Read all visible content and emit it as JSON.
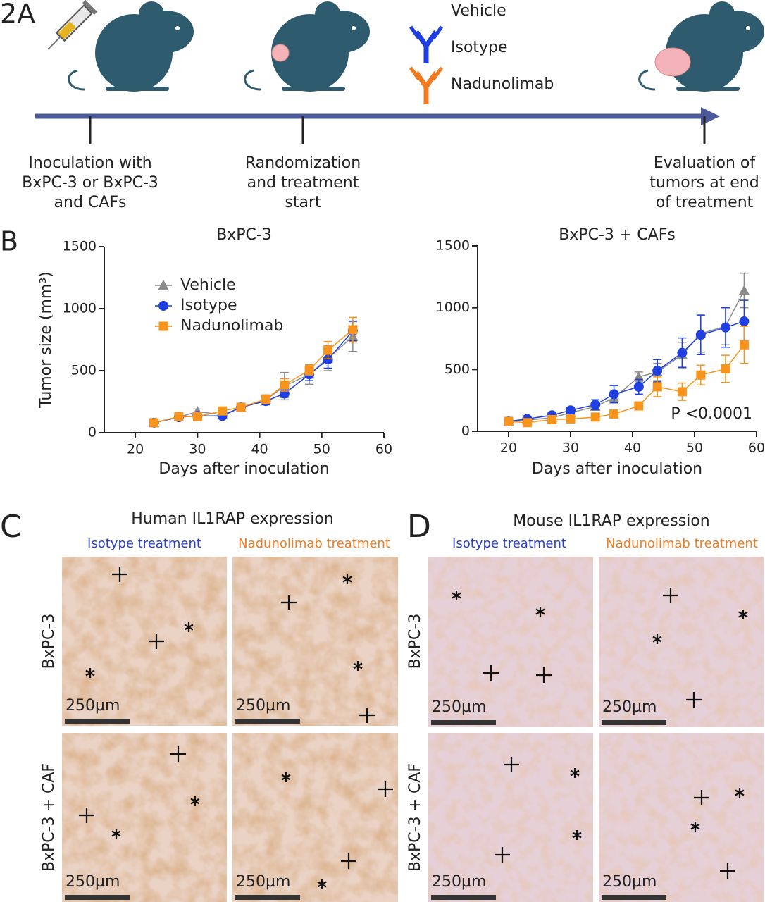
{
  "panel_a": {
    "label": "2A",
    "legend": [
      "Vehicle",
      "Isotype",
      "Nadunolimab"
    ],
    "steps": [
      [
        "Inoculation with",
        "BxPC-3 or BxPC-3",
        "and CAFs"
      ],
      [
        "Randomization",
        "and treatment",
        "start"
      ],
      [
        "Evaluation of",
        "tumors at end",
        "of treatment"
      ]
    ]
  },
  "panel_b_label": "B",
  "chart_data": [
    {
      "type": "line",
      "title": "BxPC-3",
      "x_label": "Days after inoculation",
      "y_label": "Tumor size (mm³)",
      "x": [
        23,
        27,
        30,
        34,
        37,
        41,
        44,
        48,
        51,
        55
      ],
      "xlim": [
        15,
        60
      ],
      "xticks": [
        20,
        30,
        40,
        50,
        60
      ],
      "ylim": [
        0,
        1500
      ],
      "yticks": [
        0,
        500,
        1000,
        1500
      ],
      "legend": true,
      "series": [
        {
          "name": "Vehicle",
          "color": "#8c8c8c",
          "marker": "triangle",
          "values": [
            80,
            125,
            170,
            145,
            200,
            265,
            375,
            470,
            600,
            775
          ],
          "errors": [
            10,
            15,
            20,
            20,
            30,
            40,
            110,
            80,
            100,
            120
          ]
        },
        {
          "name": "Isotype",
          "color": "#1f3fe0",
          "marker": "circle",
          "values": [
            80,
            125,
            135,
            135,
            205,
            255,
            315,
            470,
            590,
            820
          ],
          "errors": [
            10,
            15,
            15,
            15,
            20,
            30,
            30,
            50,
            70,
            80
          ]
        },
        {
          "name": "Nadunolimab",
          "color": "#f7941d",
          "marker": "square",
          "values": [
            80,
            130,
            130,
            175,
            205,
            270,
            385,
            505,
            665,
            830
          ],
          "errors": [
            10,
            15,
            15,
            20,
            25,
            35,
            50,
            40,
            70,
            100
          ]
        }
      ]
    },
    {
      "type": "line",
      "title": "BxPC-3 + CAFs",
      "x_label": "Days after inoculation",
      "annotation": "P <0.0001",
      "x": [
        20,
        23,
        27,
        30,
        34,
        37,
        41,
        44,
        48,
        51,
        55,
        58
      ],
      "xlim": [
        15,
        60
      ],
      "xticks": [
        20,
        30,
        40,
        50,
        60
      ],
      "ylim": [
        0,
        1500
      ],
      "yticks": [
        0,
        500,
        1000,
        1500
      ],
      "legend": false,
      "series": [
        {
          "color": "#8c8c8c",
          "marker": "triangle",
          "values": [
            80,
            90,
            110,
            150,
            200,
            270,
            440,
            480,
            620,
            790,
            850,
            1140
          ],
          "errors": [
            10,
            10,
            15,
            20,
            30,
            40,
            40,
            70,
            100,
            150,
            150,
            140
          ]
        },
        {
          "color": "#1f3fe0",
          "marker": "circle",
          "values": [
            80,
            100,
            130,
            170,
            215,
            300,
            360,
            490,
            635,
            780,
            840,
            890
          ],
          "errors": [
            10,
            15,
            20,
            25,
            40,
            70,
            60,
            90,
            120,
            160,
            160,
            170
          ]
        },
        {
          "color": "#f7941d",
          "marker": "square",
          "values": [
            80,
            70,
            95,
            100,
            115,
            140,
            205,
            360,
            320,
            455,
            505,
            700
          ],
          "errors": [
            10,
            10,
            15,
            20,
            20,
            25,
            30,
            80,
            70,
            80,
            110,
            150
          ]
        }
      ]
    }
  ],
  "panel_c": {
    "label": "C",
    "title": "Human IL1RAP expression",
    "columns": [
      "Isotype treatment",
      "Nadunolimab treatment"
    ],
    "rows": [
      "BxPC-3",
      "BxPC-3 + CAF"
    ],
    "scale_bar": "250µm"
  },
  "panel_d": {
    "label": "D",
    "title": "Mouse IL1RAP expression",
    "columns": [
      "Isotype treatment",
      "Nadunolimab treatment"
    ],
    "rows": [
      "BxPC-3",
      "BxPC-3 + CAF"
    ],
    "scale_bar": "250µm"
  }
}
